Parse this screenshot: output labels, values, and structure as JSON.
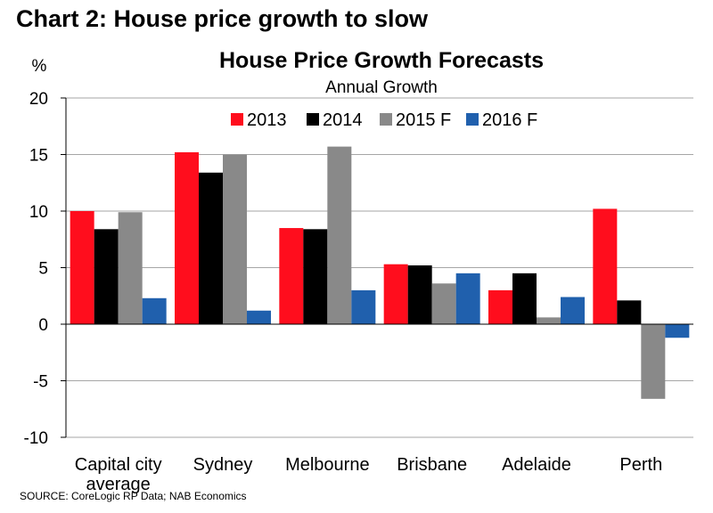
{
  "page": {
    "heading": "Chart 2: House price growth to slow",
    "source": "SOURCE: CoreLogic RP Data; NAB Economics"
  },
  "chart_data": {
    "type": "bar",
    "title": "House Price Growth Forecasts",
    "subtitle": "Annual Growth",
    "ylabel": "%",
    "xlabel": "",
    "ylim": [
      -10,
      20
    ],
    "yticks": [
      -10,
      -5,
      0,
      5,
      10,
      15,
      20
    ],
    "grid": true,
    "legend_position": "top-center",
    "categories": [
      "Capital city average",
      "Sydney",
      "Melbourne",
      "Brisbane",
      "Adelaide",
      "Perth"
    ],
    "series": [
      {
        "name": "2013",
        "color": "#ff0d1d",
        "values": [
          10.0,
          15.2,
          8.5,
          5.3,
          3.0,
          10.2
        ]
      },
      {
        "name": "2014",
        "color": "#000000",
        "values": [
          8.4,
          13.4,
          8.4,
          5.2,
          4.5,
          2.1
        ]
      },
      {
        "name": "2015 F",
        "color": "#898989",
        "values": [
          9.9,
          15.0,
          15.7,
          3.6,
          0.6,
          -6.6
        ]
      },
      {
        "name": "2016 F",
        "color": "#2060ad",
        "values": [
          2.3,
          1.2,
          3.0,
          4.5,
          2.4,
          -1.2
        ]
      }
    ]
  }
}
